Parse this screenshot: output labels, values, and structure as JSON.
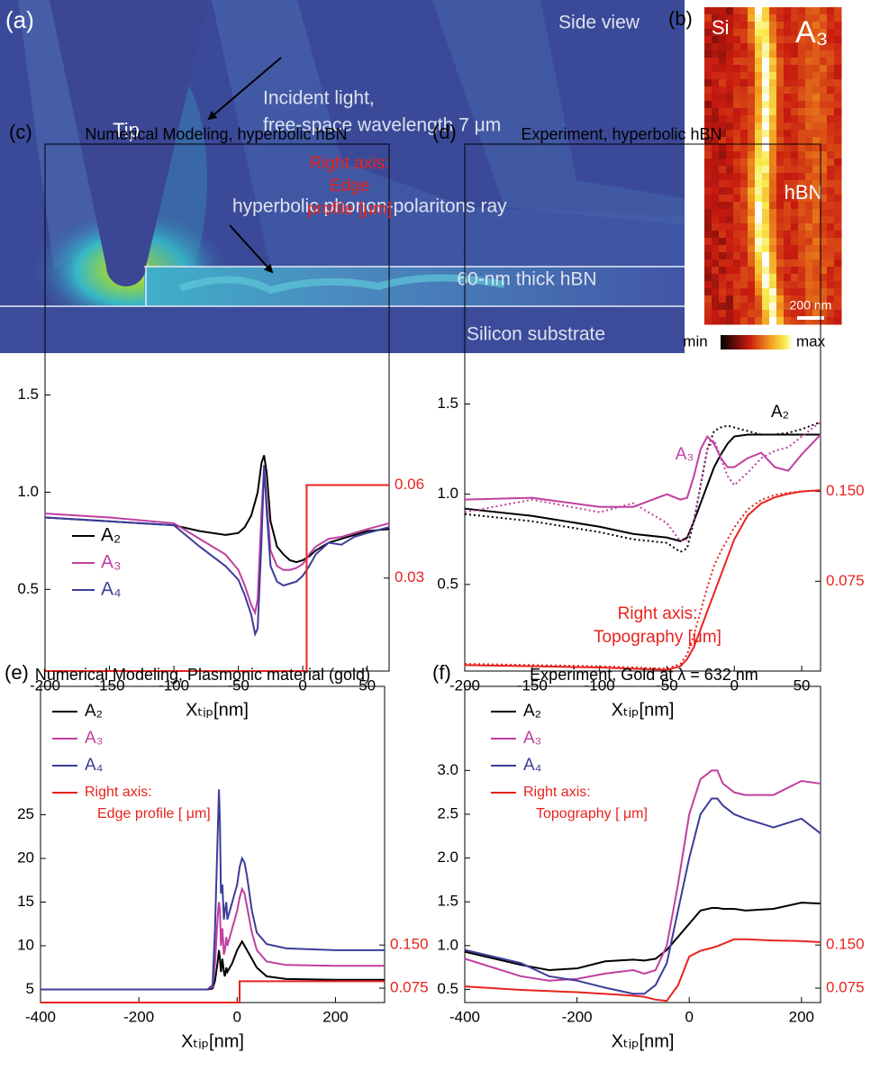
{
  "panel_a": {
    "label": "(a)",
    "view": "Side view",
    "tip": "Tip",
    "incident": [
      "Incident light,",
      "free-space wavelength 7 μm"
    ],
    "ray": "hyperbolic phonon-polaritons ray",
    "layer": "60-nm thick hBN",
    "substrate": "Silicon substrate"
  },
  "panel_b": {
    "label": "(b)",
    "left": "Si",
    "right": "A₃",
    "material": "hBN",
    "scale": "200 nm",
    "min": "min",
    "max": "max"
  },
  "chart_data": [
    {
      "type": "line",
      "label": "(c)",
      "title": "Numerical Modeling, hyperbolic hBN",
      "x_label": "Xₜᵢₚ[nm]",
      "xlim": [
        -200,
        67
      ],
      "xticks": [
        -200,
        -150,
        -100,
        -50,
        0,
        50
      ],
      "ylim": [
        0.08,
        2.79
      ],
      "yticks": [
        0.5,
        {
          "value": 1,
          "label": "1.0"
        },
        1.5
      ],
      "y2lim": [
        0,
        0.17
      ],
      "y2ticks": [
        0.03,
        0.06
      ],
      "legend": "lower left",
      "x": [
        -200,
        -150,
        -100,
        -80,
        -60,
        -50,
        -45,
        -40,
        -37,
        -35,
        -32,
        -30,
        -28,
        -25,
        -20,
        -15,
        -10,
        -5,
        0,
        5,
        10,
        20,
        30,
        40,
        50,
        67
      ],
      "series": [
        {
          "name": "A₂",
          "color": "#000000",
          "values": [
            0.87,
            0.85,
            0.83,
            0.8,
            0.78,
            0.79,
            0.82,
            0.88,
            0.95,
            1.0,
            1.15,
            1.19,
            1.1,
            0.85,
            0.72,
            0.68,
            0.65,
            0.64,
            0.65,
            0.67,
            0.7,
            0.74,
            0.76,
            0.78,
            0.8,
            0.81
          ]
        },
        {
          "name": "A₃",
          "color": "#c03fa0",
          "values": [
            0.89,
            0.87,
            0.84,
            0.76,
            0.68,
            0.6,
            0.52,
            0.42,
            0.38,
            0.45,
            0.9,
            1.13,
            0.95,
            0.7,
            0.62,
            0.6,
            0.6,
            0.61,
            0.63,
            0.68,
            0.72,
            0.76,
            0.77,
            0.79,
            0.81,
            0.84
          ]
        },
        {
          "name": "A₄",
          "color": "#3c3c9a",
          "values": [
            0.87,
            0.85,
            0.83,
            0.72,
            0.62,
            0.55,
            0.47,
            0.37,
            0.27,
            0.3,
            0.75,
            1.14,
            0.9,
            0.62,
            0.54,
            0.52,
            0.53,
            0.54,
            0.57,
            0.62,
            0.68,
            0.74,
            0.73,
            0.77,
            0.79,
            0.82
          ]
        },
        {
          "axis": "y2",
          "color": "#e8231e",
          "x": [
            -200,
            3,
            3,
            67
          ],
          "values": [
            0,
            0,
            0.06,
            0.06
          ]
        }
      ],
      "annotations": [
        "Right axis:",
        "Edge",
        "profile [μm]"
      ]
    },
    {
      "type": "line",
      "label": "(d)",
      "title": "Experiment, hyperbolic hBN",
      "x_label": "Xₜᵢₚ[nm]",
      "xlim": [
        -200,
        64
      ],
      "xticks": [
        -200,
        -150,
        -100,
        -50,
        0,
        50
      ],
      "ylim": [
        0.02,
        2.94
      ],
      "yticks": [
        0.5,
        {
          "value": 1,
          "label": "1.0"
        },
        1.5
      ],
      "y2lim": [
        0,
        0.44
      ],
      "y2ticks": [
        0.075,
        {
          "value": 0.15,
          "label": "0.150"
        }
      ],
      "x": [
        -200,
        -150,
        -100,
        -75,
        -50,
        -40,
        -35,
        -30,
        -25,
        -20,
        -15,
        -10,
        -5,
        0,
        10,
        20,
        30,
        40,
        50,
        64
      ],
      "series": [
        {
          "color": "#000000",
          "values": [
            0.92,
            0.88,
            0.82,
            0.78,
            0.76,
            0.74,
            0.76,
            0.85,
            0.95,
            1.05,
            1.15,
            1.22,
            1.28,
            1.32,
            1.33,
            1.33,
            1.33,
            1.33,
            1.33,
            1.33
          ]
        },
        {
          "color": "#000000",
          "dash": "dotted",
          "values": [
            0.89,
            0.85,
            0.79,
            0.75,
            0.73,
            0.68,
            0.7,
            0.85,
            1.05,
            1.25,
            1.35,
            1.37,
            1.38,
            1.37,
            1.35,
            1.33,
            1.33,
            1.34,
            1.36,
            1.4
          ]
        },
        {
          "color": "#c03fa0",
          "values": [
            0.97,
            0.98,
            0.93,
            0.93,
            1.0,
            0.97,
            0.98,
            1.1,
            1.25,
            1.32,
            1.28,
            1.2,
            1.15,
            1.15,
            1.2,
            1.23,
            1.15,
            1.13,
            1.22,
            1.33
          ]
        },
        {
          "color": "#c03fa0",
          "dash": "dotted",
          "values": [
            0.9,
            0.97,
            0.9,
            0.95,
            0.84,
            0.74,
            0.75,
            0.85,
            1.05,
            1.25,
            1.3,
            1.2,
            1.1,
            1.05,
            1.12,
            1.2,
            1.24,
            1.26,
            1.32,
            1.4
          ]
        },
        {
          "axis": "y2",
          "color": "#e8231e",
          "values": [
            0.005,
            0.004,
            0.003,
            0.002,
            0.001,
            0.004,
            0.01,
            0.02,
            0.035,
            0.05,
            0.065,
            0.08,
            0.095,
            0.11,
            0.13,
            0.14,
            0.145,
            0.148,
            0.15,
            0.151
          ]
        },
        {
          "axis": "y2",
          "color": "#e8231e",
          "dash": "dotted",
          "values": [
            0.006,
            0.005,
            0.004,
            0.003,
            0.002,
            0.006,
            0.014,
            0.03,
            0.05,
            0.07,
            0.088,
            0.1,
            0.11,
            0.12,
            0.135,
            0.143,
            0.147,
            0.149,
            0.15,
            0.151
          ]
        }
      ],
      "annotations": [
        "A₂",
        "A₃",
        "Right axis:",
        "Topography [μm]"
      ]
    },
    {
      "type": "line",
      "label": "(e)",
      "title": "Numerical Modeling, Plasmonic material (gold)",
      "x_label": "Xₜᵢₚ[nm]",
      "xlim": [
        -400,
        300
      ],
      "xticks": [
        -400,
        -200,
        0,
        200
      ],
      "ylim": [
        3.5,
        39.7
      ],
      "yticks": [
        5,
        10,
        15,
        20,
        25
      ],
      "y2lim": [
        0.05,
        0.6
      ],
      "y2ticks": [
        0.075,
        {
          "value": 0.15,
          "label": "0.150"
        }
      ],
      "legend": "upper left",
      "x": [
        -400,
        -200,
        -100,
        -60,
        -50,
        -45,
        -40,
        -37,
        -35,
        -33,
        -30,
        -27,
        -25,
        -22,
        -20,
        -15,
        -10,
        0,
        5,
        10,
        15,
        20,
        30,
        40,
        60,
        100,
        200,
        300
      ],
      "series": [
        {
          "name": "A₂",
          "color": "#000000",
          "values": [
            5,
            5,
            5,
            5,
            5.1,
            6,
            8,
            9.5,
            8.5,
            7,
            8.5,
            7,
            6.5,
            7.5,
            7,
            7.5,
            8,
            9.5,
            10,
            10.5,
            10,
            9.5,
            8.5,
            7.5,
            6.5,
            6.2,
            6.1,
            6.1
          ]
        },
        {
          "name": "A₃",
          "color": "#c03fa0",
          "values": [
            5,
            5,
            5,
            5,
            5.3,
            8,
            13,
            15,
            14,
            10,
            12,
            9,
            9.5,
            11,
            10,
            11,
            12,
            14,
            15.5,
            16.5,
            16,
            14.5,
            11.5,
            9.5,
            8.2,
            7.8,
            7.7,
            7.7
          ]
        },
        {
          "name": "A₄",
          "color": "#3c3c9a",
          "values": [
            5,
            5,
            5,
            5,
            5.5,
            12,
            22,
            27.9,
            24,
            16,
            17,
            13,
            14,
            15,
            13,
            14,
            15,
            17,
            19,
            20,
            19.5,
            18,
            14,
            11.5,
            10.2,
            9.7,
            9.5,
            9.5
          ]
        },
        {
          "name": [
            "Right axis:",
            "Edge profile [ μm]"
          ],
          "axis": "y2",
          "color": "#e8231e",
          "x": [
            -400,
            5,
            5,
            300
          ],
          "values": [
            0.05,
            0.05,
            0.087,
            0.087
          ]
        }
      ]
    },
    {
      "type": "line",
      "label": "(f)",
      "title": "Experiment, Gold at λ = 632 nm",
      "x_label": "Xₜᵢₚ[nm]",
      "xlim": [
        -400,
        234
      ],
      "xticks": [
        -400,
        -200,
        0,
        200
      ],
      "ylim": [
        0.35,
        3.96
      ],
      "yticks": [
        0.5,
        {
          "value": 1,
          "label": "1.0"
        },
        1.5,
        {
          "value": 2,
          "label": "2.0"
        },
        2.5,
        {
          "value": 3,
          "label": "3.0"
        }
      ],
      "y2lim": [
        0.05,
        0.6
      ],
      "y2ticks": [
        0.075,
        {
          "value": 0.15,
          "label": "0.150"
        }
      ],
      "legend": "upper left",
      "x": [
        -400,
        -300,
        -250,
        -200,
        -150,
        -100,
        -80,
        -60,
        -40,
        -20,
        0,
        20,
        40,
        50,
        60,
        80,
        100,
        150,
        200,
        234
      ],
      "series": [
        {
          "name": "A₂",
          "color": "#000000",
          "values": [
            0.93,
            0.78,
            0.72,
            0.74,
            0.82,
            0.84,
            0.83,
            0.85,
            0.95,
            1.1,
            1.25,
            1.4,
            1.43,
            1.43,
            1.42,
            1.42,
            1.4,
            1.42,
            1.49,
            1.48
          ]
        },
        {
          "name": "A₃",
          "color": "#c03fa0",
          "values": [
            0.85,
            0.65,
            0.6,
            0.62,
            0.68,
            0.72,
            0.68,
            0.72,
            1.0,
            1.7,
            2.5,
            2.9,
            3.0,
            3.0,
            2.85,
            2.75,
            2.72,
            2.72,
            2.88,
            2.85
          ]
        },
        {
          "name": "A₄",
          "color": "#3c3c9a",
          "values": [
            0.95,
            0.8,
            0.65,
            0.6,
            0.52,
            0.45,
            0.45,
            0.55,
            0.8,
            1.4,
            2.0,
            2.5,
            2.68,
            2.68,
            2.6,
            2.5,
            2.45,
            2.35,
            2.45,
            2.28
          ]
        },
        {
          "name": [
            "Right axis:",
            "Topography [ μm]"
          ],
          "axis": "y2",
          "color": "#e8231e",
          "values": [
            0.078,
            0.072,
            0.07,
            0.068,
            0.065,
            0.062,
            0.06,
            0.055,
            0.053,
            0.08,
            0.13,
            0.14,
            0.145,
            0.148,
            0.152,
            0.16,
            0.16,
            0.158,
            0.157,
            0.155
          ]
        }
      ]
    }
  ]
}
